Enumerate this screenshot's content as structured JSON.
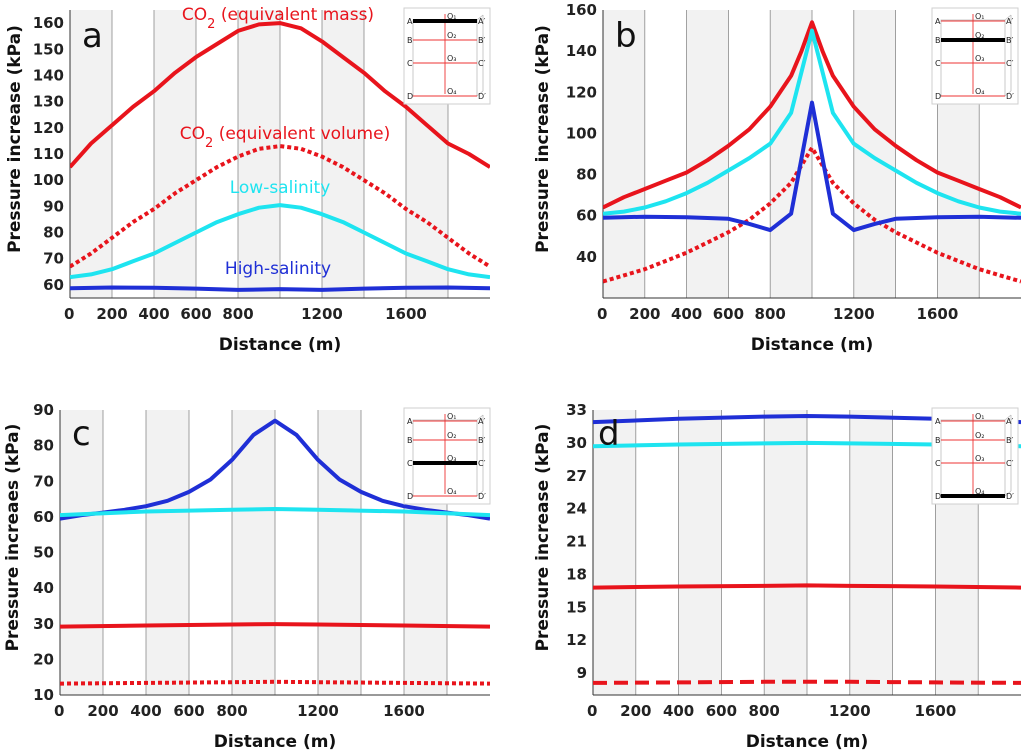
{
  "figure": {
    "colors": {
      "co2": "#e8141c",
      "low_salinity": "#1ee4f0",
      "high_salinity": "#1f2fd6",
      "grid": "#8a8a8a",
      "band": "#f2f2f2"
    },
    "inset_labels": {
      "rows": [
        {
          "left": "A",
          "mid": "O₁",
          "right": "A′"
        },
        {
          "left": "B",
          "mid": "O₂",
          "right": "B′"
        },
        {
          "left": "C",
          "mid": "O₃",
          "right": "C′"
        },
        {
          "left": "D",
          "mid": "O₄",
          "right": "D′"
        }
      ]
    }
  },
  "chart_data": [
    {
      "panel": "a",
      "type": "line",
      "xlabel": "Distance (m)",
      "ylabel": "Pressure increase (kPa)",
      "xlim": [
        0,
        2000
      ],
      "ylim": [
        55,
        165
      ],
      "xticks": [
        0,
        200,
        400,
        600,
        800,
        1200,
        1600
      ],
      "yticks": [
        60,
        70,
        80,
        90,
        100,
        110,
        120,
        130,
        140,
        150,
        160
      ],
      "inset_highlight_row": "A",
      "series": [
        {
          "name": "CO2 (equivalent mass)",
          "style": "solid",
          "color_key": "co2",
          "x": [
            0,
            100,
            200,
            300,
            400,
            500,
            600,
            700,
            800,
            900,
            1000,
            1100,
            1200,
            1300,
            1400,
            1500,
            1600,
            1700,
            1800,
            1900,
            2000
          ],
          "y": [
            105,
            114,
            121,
            128,
            134,
            141,
            147,
            152,
            157,
            159.5,
            160,
            158,
            153,
            147,
            141,
            134,
            128,
            121,
            114,
            110,
            105
          ]
        },
        {
          "name": "CO2 (equivalent volume)",
          "style": "dotted",
          "color_key": "co2",
          "x": [
            0,
            100,
            200,
            300,
            400,
            500,
            600,
            700,
            800,
            900,
            1000,
            1100,
            1200,
            1300,
            1400,
            1500,
            1600,
            1700,
            1800,
            1900,
            2000
          ],
          "y": [
            67,
            72,
            78,
            84,
            89,
            95,
            100,
            105,
            109,
            112,
            113,
            112,
            109,
            105,
            100,
            95,
            89,
            84,
            78,
            72,
            67
          ]
        },
        {
          "name": "Low-salinity",
          "style": "solid",
          "color_key": "low_salinity",
          "x": [
            0,
            100,
            200,
            300,
            400,
            500,
            600,
            700,
            800,
            900,
            1000,
            1100,
            1200,
            1300,
            1400,
            1500,
            1600,
            1700,
            1800,
            1900,
            2000
          ],
          "y": [
            63,
            64,
            66,
            69,
            72,
            76,
            80,
            84,
            87,
            89.5,
            90.5,
            89.5,
            87,
            84,
            80,
            76,
            72,
            69,
            66,
            64,
            63
          ]
        },
        {
          "name": "High-salinity",
          "style": "solid",
          "color_key": "high_salinity",
          "x": [
            0,
            200,
            400,
            600,
            800,
            1000,
            1200,
            1400,
            1600,
            1800,
            2000
          ],
          "y": [
            58.7,
            59,
            58.9,
            58.6,
            58.1,
            58.4,
            58.1,
            58.6,
            58.9,
            59,
            58.7
          ]
        }
      ],
      "annotations": [
        {
          "text_parts": [
            "CO",
            "2",
            " (equivalent mass)"
          ],
          "color_key": "co2"
        },
        {
          "text_parts": [
            "CO",
            "2",
            " (equivalent volume)"
          ],
          "color_key": "co2"
        },
        {
          "text_parts": [
            "Low-salinity"
          ],
          "color_key": "low_salinity"
        },
        {
          "text_parts": [
            "High-salinity"
          ],
          "color_key": "high_salinity"
        }
      ]
    },
    {
      "panel": "b",
      "type": "line",
      "xlabel": "Distance (m)",
      "ylabel": "Pressure increase (kPa)",
      "xlim": [
        0,
        2000
      ],
      "ylim": [
        20,
        160
      ],
      "xticks": [
        0,
        200,
        400,
        600,
        800,
        1200,
        1600
      ],
      "yticks": [
        40,
        60,
        80,
        100,
        120,
        140,
        160
      ],
      "inset_highlight_row": "B",
      "series": [
        {
          "name": "CO2 (equivalent mass)",
          "style": "solid",
          "color_key": "co2",
          "x": [
            0,
            100,
            200,
            300,
            400,
            500,
            600,
            700,
            800,
            900,
            950,
            1000,
            1050,
            1100,
            1200,
            1300,
            1400,
            1500,
            1600,
            1700,
            1800,
            1900,
            2000
          ],
          "y": [
            64,
            69,
            73,
            77,
            81,
            87,
            94,
            102,
            113,
            128,
            140,
            154,
            140,
            128,
            113,
            102,
            94,
            87,
            81,
            77,
            73,
            69,
            64
          ]
        },
        {
          "name": "CO2 (equivalent volume)",
          "style": "dotted",
          "color_key": "co2",
          "x": [
            0,
            100,
            200,
            300,
            400,
            500,
            600,
            700,
            800,
            900,
            1000,
            1100,
            1200,
            1300,
            1400,
            1500,
            1600,
            1700,
            1800,
            1900,
            2000
          ],
          "y": [
            28,
            31,
            34,
            38,
            42,
            47,
            52,
            58,
            66,
            76,
            93,
            76,
            66,
            58,
            52,
            47,
            42,
            38,
            34,
            31,
            28
          ]
        },
        {
          "name": "Low-salinity",
          "style": "solid",
          "color_key": "low_salinity",
          "x": [
            0,
            100,
            200,
            300,
            400,
            500,
            600,
            700,
            800,
            900,
            1000,
            1100,
            1200,
            1300,
            1400,
            1500,
            1600,
            1700,
            1800,
            1900,
            2000
          ],
          "y": [
            61,
            62,
            64,
            67,
            71,
            76,
            82,
            88,
            95,
            110,
            150,
            110,
            95,
            88,
            82,
            76,
            71,
            67,
            64,
            62,
            61
          ]
        },
        {
          "name": "High-salinity",
          "style": "solid",
          "color_key": "high_salinity",
          "x": [
            0,
            200,
            400,
            600,
            700,
            800,
            900,
            1000,
            1100,
            1200,
            1300,
            1400,
            1600,
            1800,
            2000
          ],
          "y": [
            59,
            59.5,
            59.3,
            58.5,
            56,
            53,
            61,
            115,
            61,
            53,
            56,
            58.5,
            59.3,
            59.5,
            59
          ]
        }
      ]
    },
    {
      "panel": "c",
      "type": "line",
      "xlabel": "Distance (m)",
      "ylabel": "Pressure increaes (kPa)",
      "xlim": [
        0,
        2000
      ],
      "ylim": [
        10,
        90
      ],
      "xticks": [
        0,
        200,
        400,
        600,
        800,
        1200,
        1600
      ],
      "yticks": [
        10,
        20,
        30,
        40,
        50,
        60,
        70,
        80,
        90
      ],
      "inset_highlight_row": "C",
      "series": [
        {
          "name": "High-salinity",
          "style": "solid",
          "color_key": "high_salinity",
          "x": [
            0,
            100,
            200,
            300,
            400,
            500,
            600,
            700,
            800,
            900,
            1000,
            1100,
            1200,
            1300,
            1400,
            1500,
            1600,
            1700,
            1800,
            1900,
            2000
          ],
          "y": [
            59.5,
            60.5,
            61.2,
            62,
            63,
            64.5,
            67,
            70.5,
            76,
            83,
            87,
            83,
            76,
            70.5,
            67,
            64.5,
            63,
            62,
            61.2,
            60.5,
            59.5
          ]
        },
        {
          "name": "Low-salinity",
          "style": "solid",
          "color_key": "low_salinity",
          "x": [
            0,
            400,
            800,
            1000,
            1200,
            1600,
            2000
          ],
          "y": [
            60.5,
            61.5,
            62,
            62.2,
            62,
            61.5,
            60.5
          ]
        },
        {
          "name": "CO2 (equivalent mass)",
          "style": "solid",
          "color_key": "co2",
          "x": [
            0,
            400,
            800,
            1000,
            1200,
            1600,
            2000
          ],
          "y": [
            29.2,
            29.5,
            29.8,
            29.9,
            29.8,
            29.5,
            29.2
          ]
        },
        {
          "name": "CO2 (equivalent volume)",
          "style": "dotted",
          "color_key": "co2",
          "x": [
            0,
            400,
            800,
            1000,
            1200,
            1600,
            2000
          ],
          "y": [
            13.2,
            13.4,
            13.6,
            13.7,
            13.6,
            13.4,
            13.2
          ]
        }
      ]
    },
    {
      "panel": "d",
      "type": "line",
      "xlabel": "Distance (m)",
      "ylabel": "Pressure increase (kPa)",
      "xlim": [
        0,
        2000
      ],
      "ylim": [
        7,
        33
      ],
      "xticks": [
        0,
        200,
        400,
        600,
        800,
        1200,
        1600
      ],
      "yticks": [
        9,
        12,
        15,
        18,
        21,
        24,
        27,
        30,
        33
      ],
      "inset_highlight_row": "D",
      "series": [
        {
          "name": "High-salinity",
          "style": "solid",
          "color_key": "high_salinity",
          "x": [
            0,
            400,
            800,
            1000,
            1200,
            1600,
            2000
          ],
          "y": [
            31.9,
            32.2,
            32.4,
            32.45,
            32.4,
            32.2,
            31.9
          ]
        },
        {
          "name": "Low-salinity",
          "style": "solid",
          "color_key": "low_salinity",
          "x": [
            0,
            400,
            800,
            1000,
            1200,
            1600,
            2000
          ],
          "y": [
            29.7,
            29.85,
            29.95,
            30,
            29.95,
            29.85,
            29.7
          ]
        },
        {
          "name": "CO2 (equivalent mass)",
          "style": "solid",
          "color_key": "co2",
          "x": [
            0,
            400,
            800,
            1000,
            1200,
            1600,
            2000
          ],
          "y": [
            16.8,
            16.9,
            16.95,
            17,
            16.95,
            16.9,
            16.8
          ]
        },
        {
          "name": "CO2 (equivalent volume)",
          "style": "dashed",
          "color_key": "co2",
          "x": [
            0,
            400,
            800,
            1000,
            1200,
            1600,
            2000
          ],
          "y": [
            8.1,
            8.15,
            8.2,
            8.2,
            8.2,
            8.15,
            8.1
          ]
        }
      ]
    }
  ]
}
